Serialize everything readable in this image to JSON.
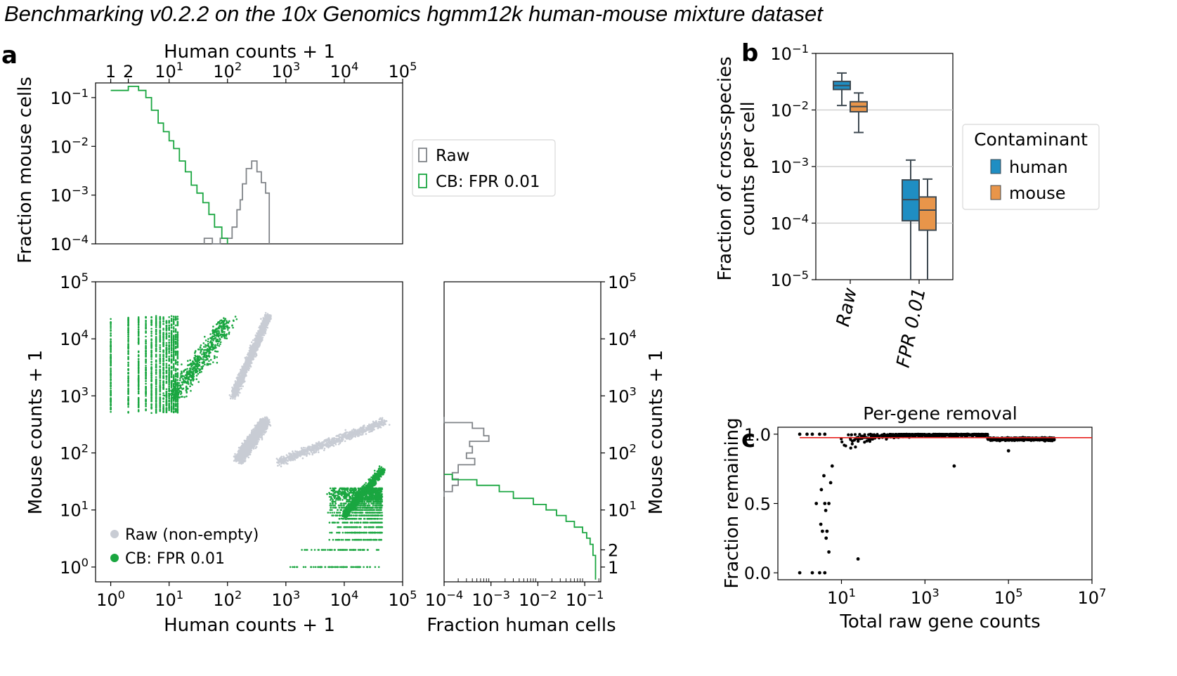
{
  "figure": {
    "title": "Benchmarking v0.2.2 on the 10x Genomics hgmm12k human-mouse mixture dataset",
    "panels": {
      "a": "a",
      "b": "b",
      "c": "c"
    }
  },
  "colors": {
    "raw": "#808488",
    "cb": "#1aa640",
    "raw_points": "#c8ccd4",
    "human": "#1f8ec3",
    "mouse": "#e8954a",
    "gene_points": "#000000",
    "fit_line": "#e8201e",
    "grid": "#c8c8c8"
  },
  "chart_data": [
    {
      "id": "a-top",
      "type": "histogram",
      "xlabel": "Human counts + 1",
      "ylabel": "Fraction mouse cells",
      "x_scale": "log",
      "y_scale": "log",
      "x_ticks": [
        {
          "v": 1,
          "label": "1"
        },
        {
          "v": 2,
          "label": "2"
        },
        {
          "v": 10,
          "label": "10",
          "exp": "1"
        },
        {
          "v": 100,
          "label": "10",
          "exp": "2"
        },
        {
          "v": 1000,
          "label": "10",
          "exp": "3"
        },
        {
          "v": 10000,
          "label": "10",
          "exp": "4"
        },
        {
          "v": 100000,
          "label": "10",
          "exp": "5"
        }
      ],
      "y_ticks": [
        {
          "v": 0.1,
          "label": "10",
          "exp": "−1"
        },
        {
          "v": 0.01,
          "label": "10",
          "exp": "−2"
        },
        {
          "v": 0.001,
          "label": "10",
          "exp": "−3"
        },
        {
          "v": 0.0001,
          "label": "10",
          "exp": "−4"
        }
      ],
      "legend": {
        "position": "right",
        "items": [
          {
            "name": "Raw"
          },
          {
            "name": "CB: FPR 0.01"
          }
        ]
      },
      "series": [
        {
          "name": "Raw",
          "color_key": "raw",
          "steps": [
            [
              40,
              0.0001
            ],
            [
              40,
              0.00013
            ],
            [
              55,
              0.00013
            ],
            [
              55,
              0.0001
            ],
            [
              75,
              0.0001
            ],
            [
              75,
              0.00013
            ],
            [
              120,
              0.00013
            ],
            [
              120,
              0.00022
            ],
            [
              145,
              0.00022
            ],
            [
              145,
              0.0005
            ],
            [
              165,
              0.0005
            ],
            [
              165,
              0.0008
            ],
            [
              180,
              0.0008
            ],
            [
              180,
              0.0017
            ],
            [
              210,
              0.0017
            ],
            [
              210,
              0.0035
            ],
            [
              260,
              0.0035
            ],
            [
              260,
              0.005
            ],
            [
              320,
              0.005
            ],
            [
              320,
              0.003
            ],
            [
              380,
              0.003
            ],
            [
              380,
              0.0018
            ],
            [
              450,
              0.0018
            ],
            [
              450,
              0.0011
            ],
            [
              520,
              0.0011
            ],
            [
              520,
              0.0001
            ]
          ]
        },
        {
          "name": "CB: FPR 0.01",
          "color_key": "cb",
          "steps": [
            [
              1,
              0.14
            ],
            [
              2,
              0.14
            ],
            [
              2,
              0.17
            ],
            [
              3,
              0.17
            ],
            [
              3,
              0.14
            ],
            [
              4,
              0.14
            ],
            [
              4,
              0.1
            ],
            [
              5,
              0.1
            ],
            [
              5,
              0.055
            ],
            [
              6.5,
              0.055
            ],
            [
              6.5,
              0.03
            ],
            [
              8,
              0.03
            ],
            [
              8,
              0.02
            ],
            [
              10,
              0.02
            ],
            [
              10,
              0.013
            ],
            [
              12,
              0.013
            ],
            [
              12,
              0.009
            ],
            [
              15,
              0.009
            ],
            [
              15,
              0.005
            ],
            [
              19,
              0.005
            ],
            [
              19,
              0.003
            ],
            [
              24,
              0.003
            ],
            [
              24,
              0.0016
            ],
            [
              30,
              0.0016
            ],
            [
              30,
              0.0011
            ],
            [
              38,
              0.0011
            ],
            [
              38,
              0.0007
            ],
            [
              48,
              0.0007
            ],
            [
              48,
              0.0004
            ],
            [
              60,
              0.0004
            ],
            [
              60,
              0.00022
            ],
            [
              80,
              0.00022
            ],
            [
              80,
              0.00013
            ],
            [
              100,
              0.00013
            ],
            [
              100,
              0.0001
            ]
          ]
        }
      ]
    },
    {
      "id": "a-scatter",
      "type": "scatter",
      "xlabel": "Human counts + 1",
      "ylabel": "Mouse counts + 1",
      "x_scale": "log",
      "y_scale": "log",
      "xlim": [
        0.55,
        100000
      ],
      "ylim": [
        0.55,
        100000
      ],
      "x_ticks": [
        {
          "v": 1,
          "label": "10",
          "exp": "0"
        },
        {
          "v": 10,
          "label": "10",
          "exp": "1"
        },
        {
          "v": 100,
          "label": "10",
          "exp": "2"
        },
        {
          "v": 1000,
          "label": "10",
          "exp": "3"
        },
        {
          "v": 10000,
          "label": "10",
          "exp": "4"
        },
        {
          "v": 100000,
          "label": "10",
          "exp": "5"
        }
      ],
      "y_ticks": [
        {
          "v": 1,
          "label": "10",
          "exp": "0"
        },
        {
          "v": 10,
          "label": "10",
          "exp": "1"
        },
        {
          "v": 100,
          "label": "10",
          "exp": "2"
        },
        {
          "v": 1000,
          "label": "10",
          "exp": "3"
        },
        {
          "v": 10000,
          "label": "10",
          "exp": "4"
        },
        {
          "v": 100000,
          "label": "10",
          "exp": "5"
        }
      ],
      "legend": {
        "position": "lower-left",
        "items": [
          {
            "name": "Raw (non-empty)"
          },
          {
            "name": "CB: FPR 0.01"
          }
        ]
      },
      "clusters": [
        {
          "series": "Raw (non-empty)",
          "color_key": "raw_points",
          "n": 2600,
          "x": [
            2.2,
            2.65
          ],
          "y": [
            1.9,
            2.55
          ],
          "spread": 0.14
        },
        {
          "series": "Raw (non-empty)",
          "color_key": "raw_points",
          "n": 1600,
          "x": [
            2.1,
            2.7
          ],
          "y": [
            3.0,
            4.4
          ],
          "spread": 0.1
        },
        {
          "series": "Raw (non-empty)",
          "color_key": "raw_points",
          "n": 900,
          "x": [
            2.9,
            4.7
          ],
          "y": [
            1.85,
            2.55
          ],
          "spread": 0.12
        },
        {
          "series": "CB: FPR 0.01",
          "color_key": "cb",
          "n": 1500,
          "x": [
            0.0,
            1.3
          ],
          "y": [
            2.7,
            4.4
          ],
          "spread": 0.0,
          "kind": "columns"
        },
        {
          "series": "CB: FPR 0.01",
          "color_key": "cb",
          "n": 600,
          "x": [
            1.1,
            2.0
          ],
          "y": [
            3.0,
            4.3
          ],
          "spread": 0.25
        },
        {
          "series": "CB: FPR 0.01",
          "color_key": "cb",
          "n": 1500,
          "x": [
            3.7,
            4.65
          ],
          "y": [
            0.0,
            1.4
          ],
          "spread": 0.0,
          "kind": "rows"
        },
        {
          "series": "CB: FPR 0.01",
          "color_key": "cb",
          "n": 900,
          "x": [
            4.0,
            4.65
          ],
          "y": [
            0.9,
            1.7
          ],
          "spread": 0.1
        }
      ]
    },
    {
      "id": "a-right",
      "type": "histogram",
      "xlabel": "Fraction human cells",
      "ylabel": "Mouse counts + 1",
      "x_scale": "log",
      "y_scale": "log",
      "x_ticks": [
        {
          "v": 0.0001,
          "label": "10",
          "exp": "−4"
        },
        {
          "v": 0.001,
          "label": "10",
          "exp": "−3"
        },
        {
          "v": 0.01,
          "label": "10",
          "exp": "−2"
        },
        {
          "v": 0.1,
          "label": "10",
          "exp": "−1"
        }
      ],
      "y_ticks": [
        {
          "v": 1,
          "label": "1"
        },
        {
          "v": 2,
          "label": "2"
        },
        {
          "v": 10,
          "label": "10",
          "exp": "1"
        },
        {
          "v": 100,
          "label": "10",
          "exp": "2"
        },
        {
          "v": 1000,
          "label": "10",
          "exp": "3"
        },
        {
          "v": 10000,
          "label": "10",
          "exp": "4"
        },
        {
          "v": 100000,
          "label": "10",
          "exp": "5"
        }
      ],
      "series": [
        {
          "name": "Raw",
          "color_key": "raw",
          "steps": [
            [
              0.0001,
              430
            ],
            [
              0.0001,
              340
            ],
            [
              0.0004,
              340
            ],
            [
              0.0004,
              270
            ],
            [
              0.0007,
              270
            ],
            [
              0.0007,
              200
            ],
            [
              0.0009,
              200
            ],
            [
              0.0009,
              160
            ],
            [
              0.00035,
              160
            ],
            [
              0.00035,
              130
            ],
            [
              0.0004,
              130
            ],
            [
              0.0004,
              100
            ],
            [
              0.0003,
              100
            ],
            [
              0.0003,
              80
            ],
            [
              0.00045,
              80
            ],
            [
              0.00045,
              62
            ],
            [
              0.0002,
              62
            ],
            [
              0.0002,
              45
            ],
            [
              0.00015,
              45
            ],
            [
              0.00015,
              35
            ],
            [
              0.0002,
              35
            ],
            [
              0.0002,
              27
            ],
            [
              0.00015,
              27
            ],
            [
              0.00015,
              21
            ],
            [
              0.0001,
              21
            ],
            [
              0.0001,
              17
            ]
          ]
        },
        {
          "name": "CB: FPR 0.01",
          "color_key": "cb",
          "steps": [
            [
              0.0001,
              42
            ],
            [
              0.00015,
              42
            ],
            [
              0.00015,
              34
            ],
            [
              0.0005,
              34
            ],
            [
              0.0005,
              27
            ],
            [
              0.0015,
              27
            ],
            [
              0.0015,
              21
            ],
            [
              0.003,
              21
            ],
            [
              0.003,
              16
            ],
            [
              0.008,
              16
            ],
            [
              0.008,
              12.5
            ],
            [
              0.015,
              12.5
            ],
            [
              0.015,
              10
            ],
            [
              0.025,
              10
            ],
            [
              0.025,
              8
            ],
            [
              0.04,
              8
            ],
            [
              0.04,
              6.3
            ],
            [
              0.06,
              6.3
            ],
            [
              0.06,
              5
            ],
            [
              0.09,
              5
            ],
            [
              0.09,
              4
            ],
            [
              0.11,
              4
            ],
            [
              0.11,
              3.2
            ],
            [
              0.13,
              3.2
            ],
            [
              0.13,
              2.5
            ],
            [
              0.15,
              2.5
            ],
            [
              0.15,
              1.6
            ],
            [
              0.17,
              1.6
            ],
            [
              0.17,
              0.6
            ]
          ]
        }
      ]
    },
    {
      "id": "b",
      "type": "box",
      "ylabel_lines": [
        "Fraction of cross-species",
        "counts per cell"
      ],
      "y_scale": "log",
      "ylim": [
        1e-05,
        0.1
      ],
      "y_ticks": [
        {
          "v": 0.1,
          "label": "10",
          "exp": "−1"
        },
        {
          "v": 0.01,
          "label": "10",
          "exp": "−2"
        },
        {
          "v": 0.001,
          "label": "10",
          "exp": "−3"
        },
        {
          "v": 0.0001,
          "label": "10",
          "exp": "−4"
        },
        {
          "v": 1e-05,
          "label": "10",
          "exp": "−5"
        }
      ],
      "categories": [
        "Raw",
        "FPR 0.01"
      ],
      "legend": {
        "title": "Contaminant",
        "position": "right",
        "items": [
          {
            "name": "human"
          },
          {
            "name": "mouse"
          }
        ]
      },
      "grid": "y",
      "boxes": [
        {
          "category": 0,
          "series": "human",
          "color_key": "human",
          "whislo": 0.012,
          "q1": 0.023,
          "med": 0.027,
          "q3": 0.032,
          "whishi": 0.045
        },
        {
          "category": 0,
          "series": "mouse",
          "color_key": "mouse",
          "whislo": 0.004,
          "q1": 0.0093,
          "med": 0.0115,
          "q3": 0.014,
          "whishi": 0.02
        },
        {
          "category": 1,
          "series": "human",
          "color_key": "human",
          "whislo": 1e-05,
          "q1": 0.00011,
          "med": 0.00026,
          "q3": 0.00058,
          "whishi": 0.0013
        },
        {
          "category": 1,
          "series": "mouse",
          "color_key": "mouse",
          "whislo": 1e-05,
          "q1": 7.5e-05,
          "med": 0.00017,
          "q3": 0.00029,
          "whishi": 0.0006
        }
      ]
    },
    {
      "id": "c",
      "type": "scatter",
      "title": "Per-gene removal",
      "xlabel": "Total raw gene counts",
      "ylabel": "Fraction remaining",
      "x_scale": "log",
      "xlim": [
        0.3,
        10000000
      ],
      "ylim": [
        -0.05,
        1.05
      ],
      "x_ticks": [
        {
          "v": 10,
          "label": "10",
          "exp": "1"
        },
        {
          "v": 1000,
          "label": "10",
          "exp": "3"
        },
        {
          "v": 100000,
          "label": "10",
          "exp": "5"
        },
        {
          "v": 10000000,
          "label": "10",
          "exp": "7"
        }
      ],
      "y_ticks": [
        {
          "v": 0.0,
          "label": "0.0"
        },
        {
          "v": 0.5,
          "label": "0.5"
        },
        {
          "v": 1.0,
          "label": "1.0"
        }
      ],
      "fit_line": {
        "x": [
          1,
          10000000
        ],
        "y": 0.975
      },
      "points": [
        [
          1,
          1.0
        ],
        [
          1.5,
          1.0
        ],
        [
          2,
          1.0
        ],
        [
          3,
          1.0
        ],
        [
          4,
          1.0
        ],
        [
          1,
          0.0
        ],
        [
          2,
          0.0
        ],
        [
          3,
          0.0
        ],
        [
          4,
          0.0
        ],
        [
          2.5,
          0.5
        ],
        [
          4,
          0.5
        ],
        [
          4.2,
          0.45
        ],
        [
          3.2,
          0.35
        ],
        [
          3.5,
          0.3
        ],
        [
          4.5,
          0.3
        ],
        [
          5,
          0.15
        ],
        [
          4.3,
          0.25
        ],
        [
          3.3,
          0.6
        ],
        [
          5.5,
          0.65
        ],
        [
          3.8,
          0.7
        ],
        [
          6,
          0.77
        ],
        [
          5,
          0.5
        ],
        [
          25,
          0.1
        ],
        [
          5000,
          0.77
        ],
        [
          100000,
          0.88
        ],
        [
          500000,
          0.96
        ]
      ]
    }
  ]
}
